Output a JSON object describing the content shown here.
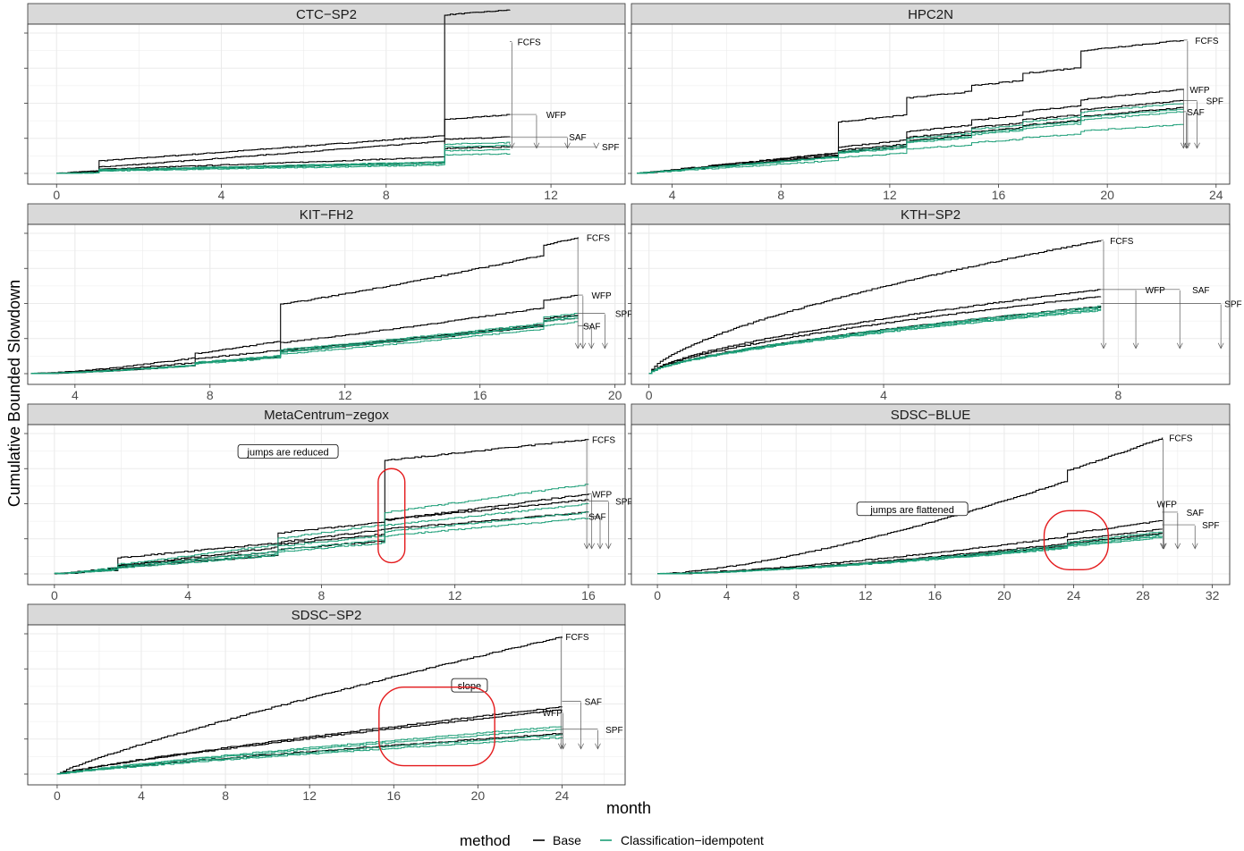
{
  "colors": {
    "base": "#000000",
    "classification": "#1b9e77",
    "highlight": "#e41a1c",
    "strip": "#d9d9d9"
  },
  "axes": {
    "xlabel": "month",
    "ylabel": "Cumulative Bounded Slowdown"
  },
  "legend": {
    "title": "method",
    "entries": [
      "Base",
      "Classification−idempotent"
    ]
  },
  "chart_data": {
    "type": "line",
    "grid": true,
    "legend_position": "bottom",
    "y_tick_labels_shown": false,
    "panels": [
      {
        "title": "CTC−SP2",
        "xlim": [
          -0.7,
          13.8
        ],
        "x_ticks": [
          0,
          4,
          8,
          12
        ],
        "end_x": 11,
        "ends": {
          "FCFS": 0.94,
          "WFP": 0.42,
          "SAF": 0.26,
          "SPF": 0.19,
          "g": [
            0.22,
            0.2,
            0.17,
            0.14
          ]
        },
        "jumps": [
          [
            9.4,
            0.14,
            0.86,
            0.18
          ],
          [
            1.0,
            0.03,
            0.07,
            0.03
          ]
        ],
        "spread": 0.006,
        "pow": 1.05,
        "labels": [
          {
            "name": "FCFS",
            "x": 11.1,
            "f": 0.94,
            "tx": 0,
            "tf": 0,
            "ax": 11.05
          },
          {
            "name": "WFP",
            "x": 11.8,
            "f": 0.42,
            "tx": 0,
            "tf": 0,
            "ax": 11.65
          },
          {
            "name": "SAF",
            "x": 12.35,
            "f": 0.26,
            "tx": 0,
            "tf": 0,
            "ax": 12.4
          },
          {
            "name": "SPF",
            "x": 13.15,
            "f": 0.19,
            "tx": 0,
            "tf": 0,
            "ax": 13.1
          }
        ],
        "notes": [],
        "highlights": []
      },
      {
        "title": "HPC2N",
        "xlim": [
          2.5,
          24.5
        ],
        "x_ticks": [
          4,
          8,
          12,
          16,
          20,
          24
        ],
        "end_x": 22.8,
        "ends": {
          "FCFS": 0.95,
          "WFP": 0.6,
          "SAF": 0.52,
          "SPF": 0.47,
          "g": [
            0.5,
            0.46,
            0.44,
            0.35
          ]
        },
        "jumps": [
          [
            10.0,
            0.14,
            0.22,
            0.05
          ],
          [
            12.5,
            0.26,
            0.12,
            0.07
          ],
          [
            15.0,
            0.35,
            0.04,
            0.04
          ],
          [
            16.8,
            0.45,
            0.05,
            0.03
          ],
          [
            19.0,
            0.55,
            0.12,
            0.05
          ]
        ],
        "spread": 0.008,
        "pow": 1.0,
        "labels": [
          {
            "name": "FCFS",
            "x": 23.1,
            "f": 0.95,
            "tx": 0,
            "tf": 0,
            "ax": 22.95
          },
          {
            "name": "WFP",
            "x": 22.9,
            "f": 0.6,
            "tx": 0,
            "tf": 0,
            "ax": 22.8
          },
          {
            "name": "SAF",
            "x": 22.8,
            "f": 0.44,
            "tx": 0,
            "tf": 0,
            "ax": 22.9
          },
          {
            "name": "SPF",
            "x": 23.5,
            "f": 0.52,
            "tx": 0,
            "tf": 0,
            "ax": 23.3
          }
        ],
        "notes": [],
        "highlights": []
      },
      {
        "title": "KIT−FH2",
        "xlim": [
          2.6,
          20.3
        ],
        "x_ticks": [
          4,
          8,
          12,
          16,
          20
        ],
        "end_x": 18.9,
        "ends": {
          "FCFS": 0.97,
          "WFP": 0.56,
          "SAF": 0.42,
          "SPF": 0.4,
          "g": [
            0.43,
            0.41,
            0.4,
            0.37
          ]
        },
        "jumps": [
          [
            7.5,
            0.04,
            0.03,
            0.03
          ],
          [
            10.0,
            0.14,
            0.26,
            0.06
          ],
          [
            17.8,
            0.62,
            0.07,
            0.06
          ]
        ],
        "spread": 0.007,
        "pow": 1.4,
        "labels": [
          {
            "name": "FCFS",
            "x": 19.05,
            "f": 0.97,
            "tx": 0,
            "tf": 0,
            "ax": 18.9
          },
          {
            "name": "WFP",
            "x": 19.2,
            "f": 0.56,
            "tx": 0,
            "tf": 0,
            "ax": 19.05
          },
          {
            "name": "SAF",
            "x": 18.95,
            "f": 0.34,
            "tx": 0,
            "tf": 0,
            "ax": 19.3
          },
          {
            "name": "SPF",
            "x": 19.9,
            "f": 0.43,
            "tx": 0,
            "tf": 0,
            "ax": 19.7
          }
        ],
        "notes": [],
        "highlights": []
      },
      {
        "title": "KTH−SP2",
        "xlim": [
          -0.3,
          9.9
        ],
        "x_ticks": [
          0,
          4,
          8
        ],
        "end_x": 7.7,
        "ends": {
          "FCFS": 0.95,
          "WFP": 0.6,
          "SAF": 0.55,
          "SPF": 0.48,
          "g": [
            0.48,
            0.47,
            0.46,
            0.45
          ]
        },
        "jumps": [],
        "spread": 0.008,
        "pow": 0.65,
        "labels": [
          {
            "name": "FCFS",
            "x": 7.8,
            "f": 0.95,
            "tx": 0,
            "tf": 0,
            "ax": 7.75
          },
          {
            "name": "WFP",
            "x": 8.4,
            "f": 0.6,
            "tx": 0,
            "tf": 0,
            "ax": 8.3
          },
          {
            "name": "SAF",
            "x": 9.2,
            "f": 0.6,
            "tx": 0,
            "tf": 0,
            "ax": 9.05
          },
          {
            "name": "SPF",
            "x": 9.75,
            "f": 0.5,
            "tx": 0,
            "tf": 0,
            "ax": 9.75
          }
        ],
        "notes": [],
        "highlights": []
      },
      {
        "title": "MetaCentrum−zegox",
        "xlim": [
          -0.8,
          17.1
        ],
        "x_ticks": [
          0,
          4,
          8,
          12,
          16
        ],
        "end_x": 16,
        "ends": {
          "FCFS": 0.96,
          "WFP": 0.53,
          "SAF": 0.44,
          "SPF": 0.57,
          "g": [
            0.64,
            0.5,
            0.44,
            0.4
          ]
        },
        "jumps": [
          [
            1.9,
            0.02,
            0.08,
            0.03
          ],
          [
            6.7,
            0.1,
            0.07,
            0.06
          ],
          [
            9.9,
            0.26,
            0.44,
            0.12
          ]
        ],
        "spread": 0.01,
        "pow": 1.1,
        "labels": [
          {
            "name": "FCFS",
            "x": 16.0,
            "f": 0.96,
            "tx": 0,
            "tf": 0,
            "ax": 15.95
          },
          {
            "name": "WFP",
            "x": 16.0,
            "f": 0.57,
            "tx": 0,
            "tf": 0,
            "ax": 16.1
          },
          {
            "name": "SAF",
            "x": 15.9,
            "f": 0.41,
            "tx": 0,
            "tf": 0,
            "ax": 16.35
          },
          {
            "name": "SPF",
            "x": 16.7,
            "f": 0.52,
            "tx": 0,
            "tf": 0,
            "ax": 16.6
          }
        ],
        "notes": [
          {
            "text": "jumps are reduced",
            "x": 7.0,
            "f": 0.87
          }
        ],
        "highlights": [
          {
            "x0": 9.7,
            "x1": 10.5,
            "f0": 0.08,
            "f1": 0.75
          }
        ]
      },
      {
        "title": "SDSC−BLUE",
        "xlim": [
          -1.5,
          33.0
        ],
        "x_ticks": [
          0,
          4,
          8,
          12,
          16,
          20,
          24,
          28,
          32
        ],
        "end_x": 29.1,
        "ends": {
          "FCFS": 0.97,
          "WFP": 0.32,
          "SAF": 0.38,
          "SPF": 0.29,
          "g": [
            0.3,
            0.28,
            0.27,
            0.26
          ]
        },
        "jumps": [
          [
            23.6,
            0.2,
            0.07,
            0.03
          ]
        ],
        "spread": 0.007,
        "pow": 1.45,
        "labels": [
          {
            "name": "FCFS",
            "x": 29.3,
            "f": 0.97,
            "tx": 0,
            "tf": 0,
            "ax": 29.15
          },
          {
            "name": "WFP",
            "x": 28.6,
            "f": 0.5,
            "tx": 0,
            "tf": 0,
            "ax": 29.2
          },
          {
            "name": "SAF",
            "x": 30.3,
            "f": 0.44,
            "tx": 0,
            "tf": 0,
            "ax": 30.0
          },
          {
            "name": "SPF",
            "x": 31.2,
            "f": 0.35,
            "tx": 0,
            "tf": 0,
            "ax": 31.0
          }
        ],
        "notes": [
          {
            "text": "jumps are flattened",
            "x": 14.7,
            "f": 0.46
          }
        ],
        "highlights": [
          {
            "x0": 22.3,
            "x1": 26.0,
            "f0": 0.03,
            "f1": 0.45
          }
        ]
      },
      {
        "title": "SDSC−SP2",
        "xlim": [
          -1.4,
          27.0
        ],
        "x_ticks": [
          0,
          4,
          8,
          12,
          16,
          20,
          24
        ],
        "end_x": 24,
        "ends": {
          "FCFS": 0.98,
          "WFP": 0.46,
          "SAF": 0.48,
          "SPF": 0.29,
          "g": [
            0.34,
            0.32,
            0.28,
            0.26
          ]
        },
        "jumps": [],
        "spread": 0.008,
        "pow": 0.85,
        "labels": [
          {
            "name": "FCFS",
            "x": 24.0,
            "f": 0.98,
            "tx": 0,
            "tf": 0,
            "ax": 23.95
          },
          {
            "name": "SAF",
            "x": 24.9,
            "f": 0.52,
            "tx": 0,
            "tf": 0,
            "ax": 24.9
          },
          {
            "name": "WFP",
            "x": 22.9,
            "f": 0.44,
            "tx": 0,
            "tf": 0,
            "ax": 24.05
          },
          {
            "name": "SPF",
            "x": 25.9,
            "f": 0.32,
            "tx": 0,
            "tf": 0,
            "ax": 25.7
          }
        ],
        "notes": [
          {
            "text": "slope",
            "x": 19.6,
            "f": 0.63
          }
        ],
        "highlights": [
          {
            "x0": 15.3,
            "x1": 20.8,
            "f0": 0.06,
            "f1": 0.62
          }
        ]
      }
    ]
  }
}
